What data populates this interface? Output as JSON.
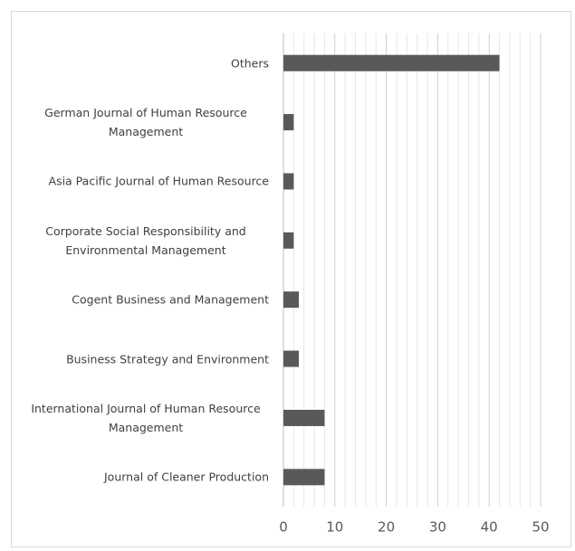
{
  "chart_data": {
    "type": "bar",
    "orientation": "horizontal",
    "categories": [
      "Others",
      "German Journal of Human Resource Management",
      "Asia Pacific Journal of Human Resource",
      "Corporate Social Responsibility and Environmental Management",
      "Cogent Business and Management",
      "Business Strategy and Environment",
      "International Journal of Human Resource Management",
      "Journal of Cleaner Production"
    ],
    "values": [
      42,
      2,
      2,
      2,
      3,
      3,
      8,
      8
    ],
    "color": "#595959",
    "xlim": [
      0,
      50
    ],
    "xticks": [
      0,
      10,
      20,
      30,
      40,
      50
    ],
    "grid": true,
    "minor_grid_step": 2
  }
}
